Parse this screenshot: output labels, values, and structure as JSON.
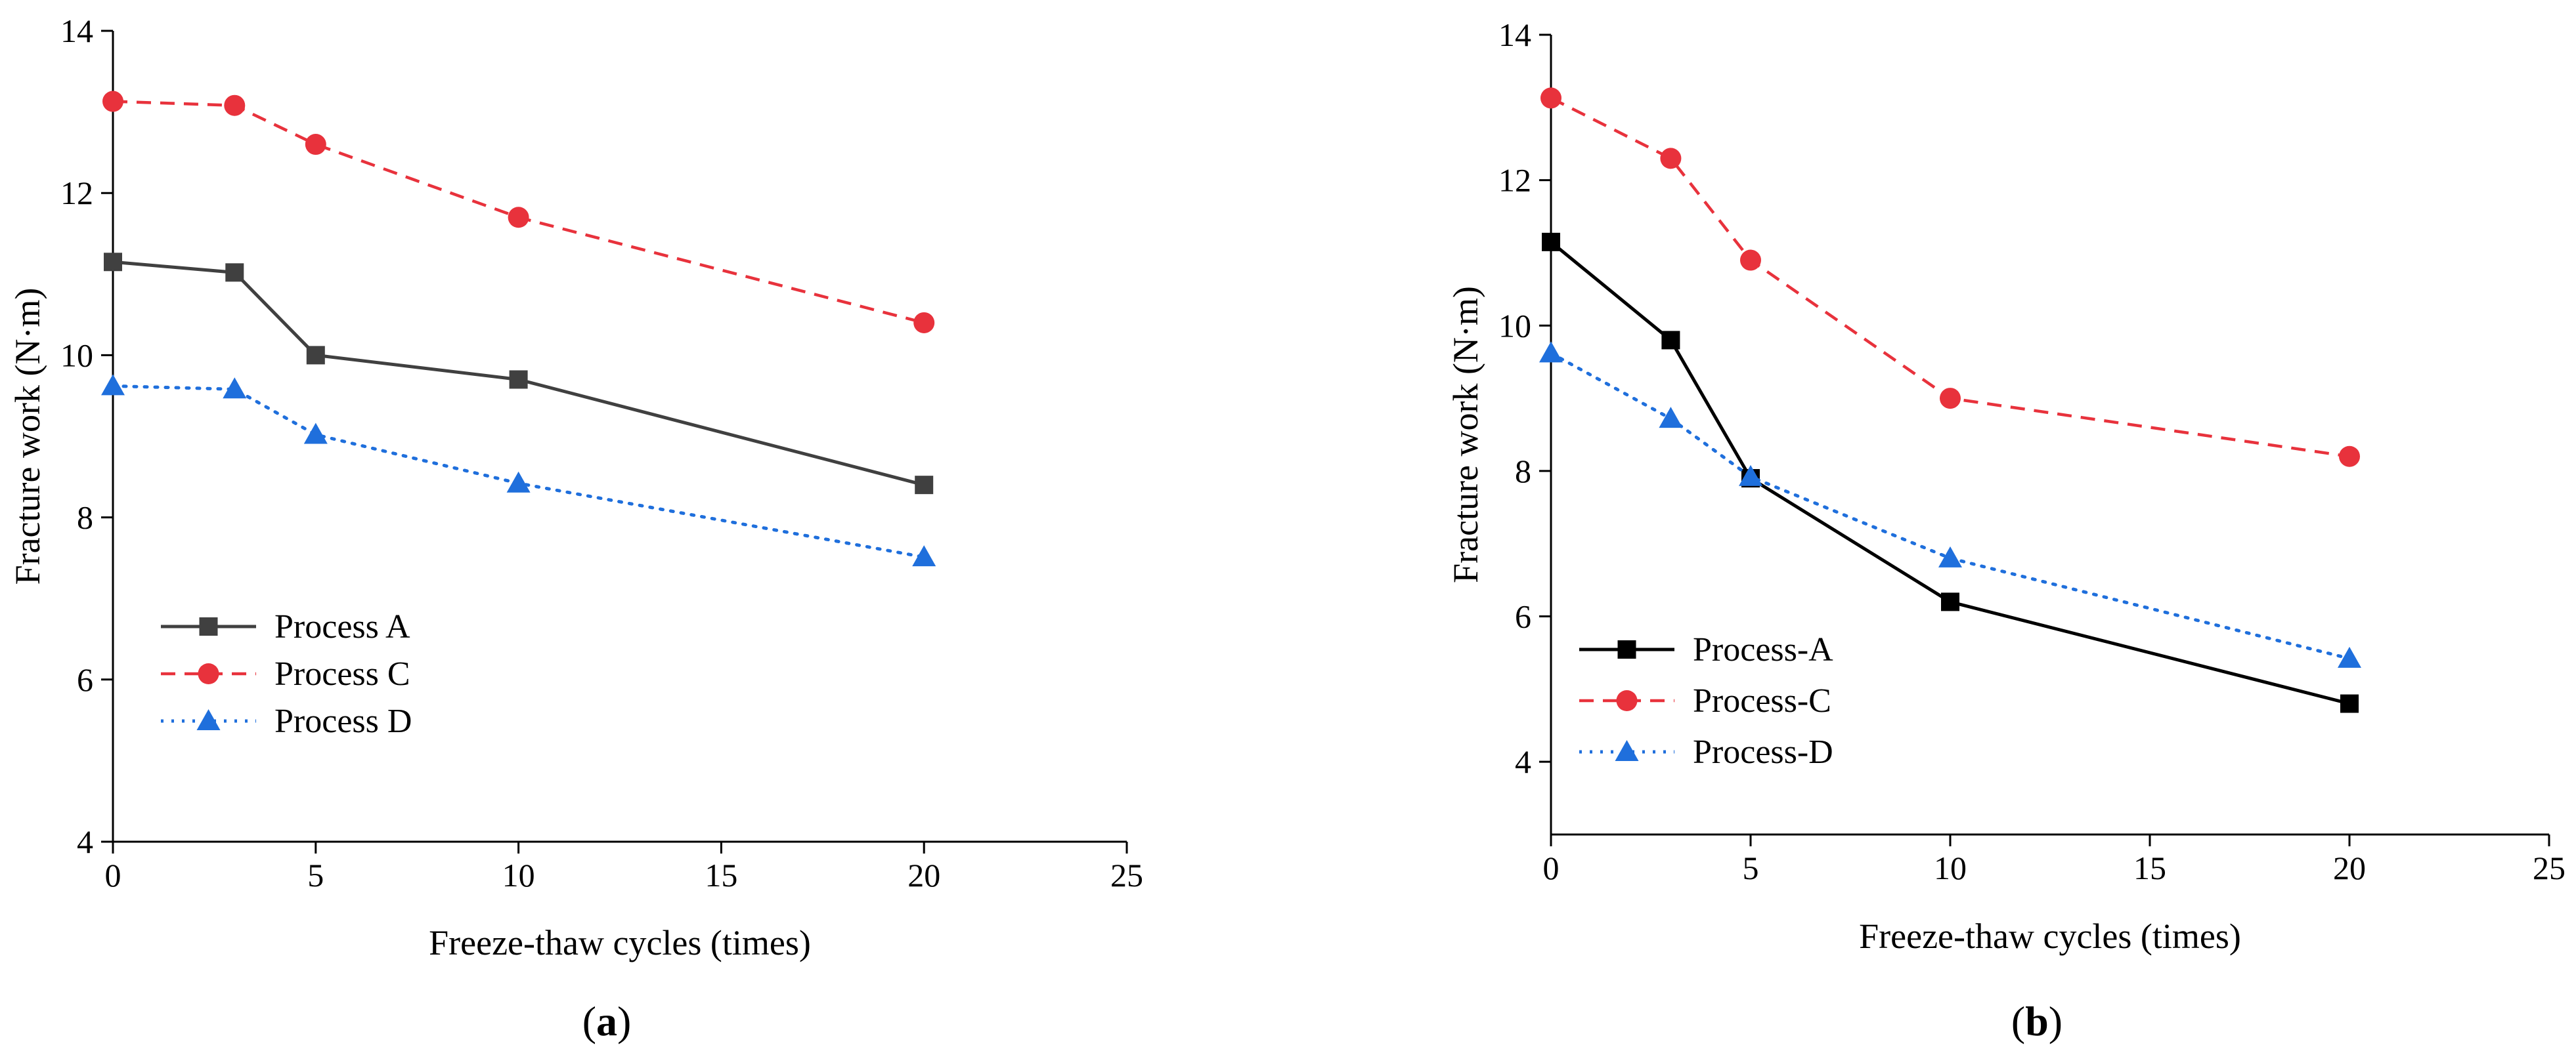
{
  "chart_data": [
    {
      "type": "line",
      "panel": "a",
      "xlabel": "Freeze-thaw cycles (times)",
      "ylabel": "Fracture work (N·m)",
      "xlim": [
        0,
        25
      ],
      "ylim": [
        4,
        14
      ],
      "xticks": [
        0,
        5,
        10,
        15,
        20,
        25
      ],
      "yticks": [
        4,
        6,
        8,
        10,
        12,
        14
      ],
      "legend_position": "lower-left",
      "grid": false,
      "x": [
        0,
        3,
        5,
        10,
        20
      ],
      "series": [
        {
          "name": "Process A",
          "values": [
            11.15,
            11.02,
            10.0,
            9.7,
            8.4
          ],
          "color": "#404040",
          "marker": "square",
          "linestyle": "solid"
        },
        {
          "name": "Process C",
          "values": [
            13.13,
            13.08,
            12.6,
            11.7,
            10.4
          ],
          "color": "#e8323c",
          "marker": "circle",
          "linestyle": "dashed"
        },
        {
          "name": "Process D",
          "values": [
            9.62,
            9.58,
            9.02,
            8.42,
            7.51
          ],
          "color": "#1f6fdc",
          "marker": "triangle",
          "linestyle": "dotted"
        }
      ]
    },
    {
      "type": "line",
      "panel": "b",
      "xlabel": "Freeze-thaw cycles (times)",
      "ylabel": "Fracture work (N·m)",
      "xlim": [
        0,
        25
      ],
      "ylim": [
        3,
        14
      ],
      "xticks": [
        0,
        5,
        10,
        15,
        20,
        25
      ],
      "yticks": [
        4,
        6,
        8,
        10,
        12,
        14
      ],
      "legend_position": "lower-left",
      "grid": false,
      "x": [
        0,
        3,
        5,
        10,
        20
      ],
      "series": [
        {
          "name": "Process-A",
          "values": [
            11.15,
            9.8,
            7.9,
            6.2,
            4.8
          ],
          "color": "#000000",
          "marker": "square",
          "linestyle": "solid"
        },
        {
          "name": "Process-C",
          "values": [
            13.13,
            12.3,
            10.9,
            9.0,
            8.2
          ],
          "color": "#e8323c",
          "marker": "circle",
          "linestyle": "dashed"
        },
        {
          "name": "Process-D",
          "values": [
            9.62,
            8.72,
            7.92,
            6.8,
            5.42
          ],
          "color": "#1f6fdc",
          "marker": "triangle",
          "linestyle": "dotted"
        }
      ]
    }
  ],
  "panels": {
    "a": {
      "open": "(",
      "letter": "a",
      "close": ")"
    },
    "b": {
      "open": "(",
      "letter": "b",
      "close": ")"
    }
  }
}
